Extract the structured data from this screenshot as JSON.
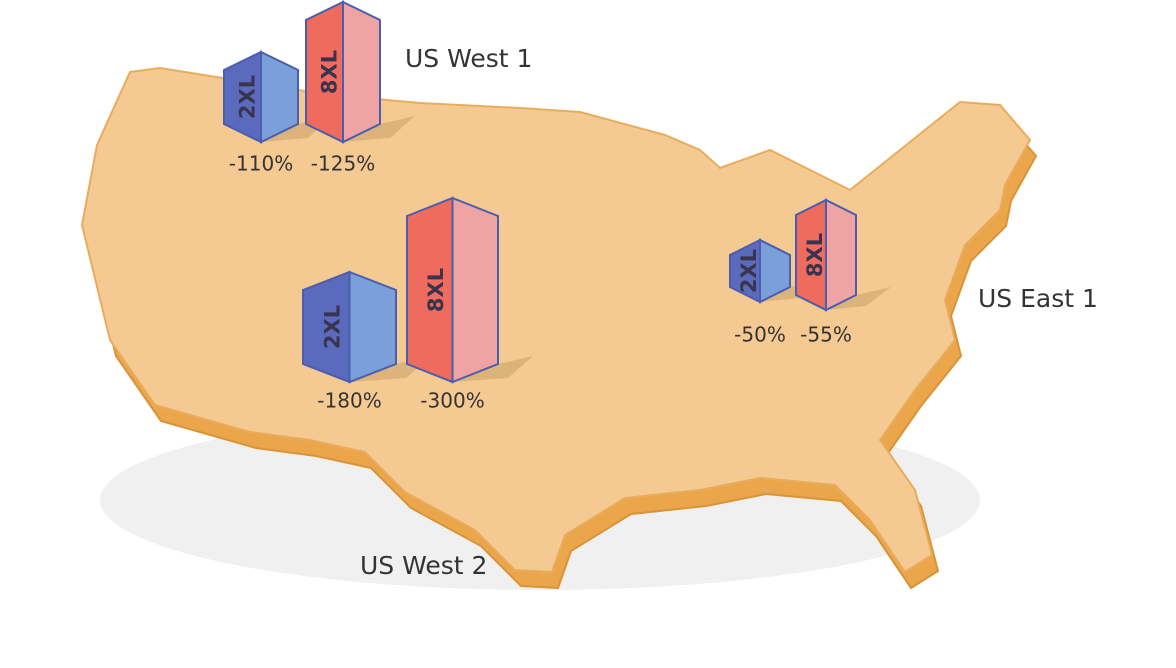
{
  "regions": [
    {
      "name": "US West 1",
      "instances": [
        {
          "size": "2XL",
          "change": "-110%"
        },
        {
          "size": "8XL",
          "change": "-125%"
        }
      ]
    },
    {
      "name": "US West 2",
      "instances": [
        {
          "size": "2XL",
          "change": "-180%"
        },
        {
          "size": "8XL",
          "change": "-300%"
        }
      ]
    },
    {
      "name": "US East 1",
      "instances": [
        {
          "size": "2XL",
          "change": "-50%"
        },
        {
          "size": "8XL",
          "change": "-55%"
        }
      ]
    }
  ]
}
